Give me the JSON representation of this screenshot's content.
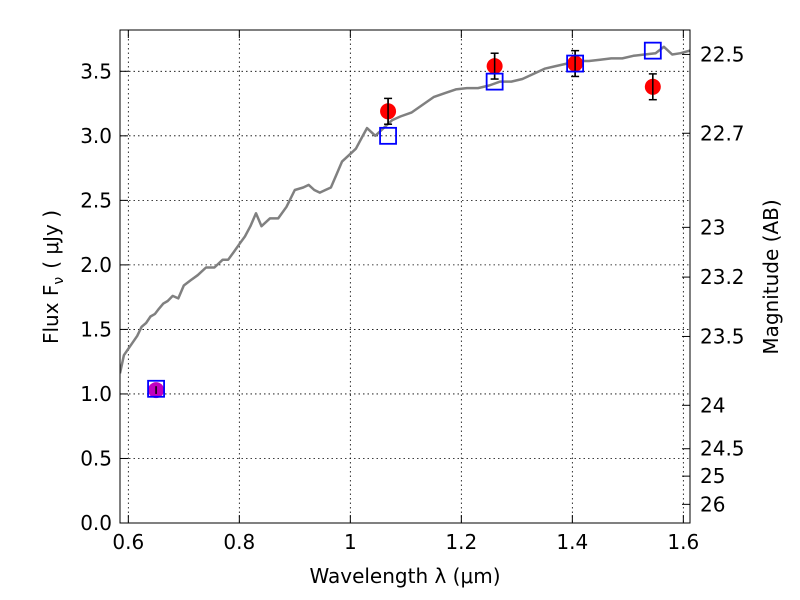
{
  "chart_data": {
    "type": "scatter",
    "xlabel": "Wavelength  λ (μm)",
    "ylabel_left": "Flux  F",
    "ylabel_left_sub": "ν",
    "ylabel_left_unit": "( μJy )",
    "ylabel_right": "Magnitude (AB)",
    "xlim": [
      0.585,
      1.612
    ],
    "ylim": [
      0.0,
      3.82
    ],
    "x_ticks": [
      {
        "value": 0.6,
        "label": "0.6"
      },
      {
        "value": 0.8,
        "label": "0.8"
      },
      {
        "value": 1.0,
        "label": "1"
      },
      {
        "value": 1.2,
        "label": "1.2"
      },
      {
        "value": 1.4,
        "label": "1.4"
      },
      {
        "value": 1.6,
        "label": "1.6"
      }
    ],
    "y_ticks": [
      {
        "value": 0.0,
        "label": "0.0"
      },
      {
        "value": 0.5,
        "label": "0.5"
      },
      {
        "value": 1.0,
        "label": "1.0"
      },
      {
        "value": 1.5,
        "label": "1.5"
      },
      {
        "value": 2.0,
        "label": "2.0"
      },
      {
        "value": 2.5,
        "label": "2.5"
      },
      {
        "value": 3.0,
        "label": "3.0"
      },
      {
        "value": 3.5,
        "label": "3.5"
      }
    ],
    "magnitude_ticks": [
      {
        "value": 22.5,
        "label": "22.5"
      },
      {
        "value": 22.7,
        "label": "22.7"
      },
      {
        "value": 23.0,
        "label": "23"
      },
      {
        "value": 23.2,
        "label": "23.2"
      },
      {
        "value": 23.5,
        "label": "23.5"
      },
      {
        "value": 24.0,
        "label": "24"
      },
      {
        "value": 24.5,
        "label": "24.5"
      },
      {
        "value": 25.0,
        "label": "25"
      },
      {
        "value": 26.0,
        "label": "26"
      }
    ],
    "grid": true,
    "series": [
      {
        "kind": "line",
        "color": "#808080",
        "points": [
          [
            0.585,
            1.16
          ],
          [
            0.592,
            1.3
          ],
          [
            0.6,
            1.35
          ],
          [
            0.608,
            1.4
          ],
          [
            0.616,
            1.45
          ],
          [
            0.624,
            1.52
          ],
          [
            0.632,
            1.55
          ],
          [
            0.64,
            1.6
          ],
          [
            0.648,
            1.62
          ],
          [
            0.655,
            1.66
          ],
          [
            0.663,
            1.7
          ],
          [
            0.671,
            1.72
          ],
          [
            0.68,
            1.76
          ],
          [
            0.69,
            1.74
          ],
          [
            0.7,
            1.84
          ],
          [
            0.712,
            1.88
          ],
          [
            0.725,
            1.92
          ],
          [
            0.74,
            1.98
          ],
          [
            0.755,
            1.98
          ],
          [
            0.77,
            2.04
          ],
          [
            0.78,
            2.04
          ],
          [
            0.79,
            2.1
          ],
          [
            0.8,
            2.16
          ],
          [
            0.81,
            2.22
          ],
          [
            0.82,
            2.3
          ],
          [
            0.83,
            2.4
          ],
          [
            0.84,
            2.3
          ],
          [
            0.855,
            2.36
          ],
          [
            0.87,
            2.36
          ],
          [
            0.885,
            2.45
          ],
          [
            0.9,
            2.58
          ],
          [
            0.915,
            2.6
          ],
          [
            0.925,
            2.62
          ],
          [
            0.935,
            2.58
          ],
          [
            0.945,
            2.56
          ],
          [
            0.955,
            2.58
          ],
          [
            0.965,
            2.6
          ],
          [
            0.975,
            2.7
          ],
          [
            0.985,
            2.8
          ],
          [
            1.0,
            2.86
          ],
          [
            1.01,
            2.9
          ],
          [
            1.02,
            2.98
          ],
          [
            1.03,
            3.06
          ],
          [
            1.045,
            3.0
          ],
          [
            1.06,
            3.06
          ],
          [
            1.075,
            3.12
          ],
          [
            1.09,
            3.15
          ],
          [
            1.11,
            3.18
          ],
          [
            1.13,
            3.24
          ],
          [
            1.15,
            3.3
          ],
          [
            1.17,
            3.33
          ],
          [
            1.19,
            3.36
          ],
          [
            1.21,
            3.37
          ],
          [
            1.23,
            3.37
          ],
          [
            1.25,
            3.39
          ],
          [
            1.27,
            3.42
          ],
          [
            1.29,
            3.42
          ],
          [
            1.31,
            3.44
          ],
          [
            1.33,
            3.48
          ],
          [
            1.35,
            3.52
          ],
          [
            1.37,
            3.54
          ],
          [
            1.39,
            3.56
          ],
          [
            1.41,
            3.58
          ],
          [
            1.43,
            3.58
          ],
          [
            1.45,
            3.59
          ],
          [
            1.47,
            3.6
          ],
          [
            1.49,
            3.6
          ],
          [
            1.51,
            3.62
          ],
          [
            1.53,
            3.63
          ],
          [
            1.55,
            3.64
          ],
          [
            1.565,
            3.69
          ],
          [
            1.58,
            3.63
          ],
          [
            1.595,
            3.64
          ],
          [
            1.612,
            3.66
          ]
        ]
      },
      {
        "kind": "points",
        "marker": "circle",
        "color": "#ff0000",
        "errorbar_color": "#000000",
        "points": [
          {
            "x": 1.068,
            "y": 3.19,
            "err": 0.1
          },
          {
            "x": 1.26,
            "y": 3.54,
            "err": 0.1
          },
          {
            "x": 1.405,
            "y": 3.56,
            "err": 0.1
          },
          {
            "x": 1.545,
            "y": 3.38,
            "err": 0.1
          }
        ]
      },
      {
        "kind": "points",
        "marker": "circle",
        "color": "#c000c0",
        "errorbar_color": "#000000",
        "points": [
          {
            "x": 0.65,
            "y": 1.03,
            "err": 0.03
          }
        ]
      },
      {
        "kind": "points",
        "marker": "open-square",
        "color": "#0000ff",
        "points": [
          {
            "x": 0.65,
            "y": 1.04
          },
          {
            "x": 1.068,
            "y": 3.0
          },
          {
            "x": 1.26,
            "y": 3.42
          },
          {
            "x": 1.405,
            "y": 3.56
          },
          {
            "x": 1.545,
            "y": 3.66
          }
        ]
      }
    ]
  }
}
